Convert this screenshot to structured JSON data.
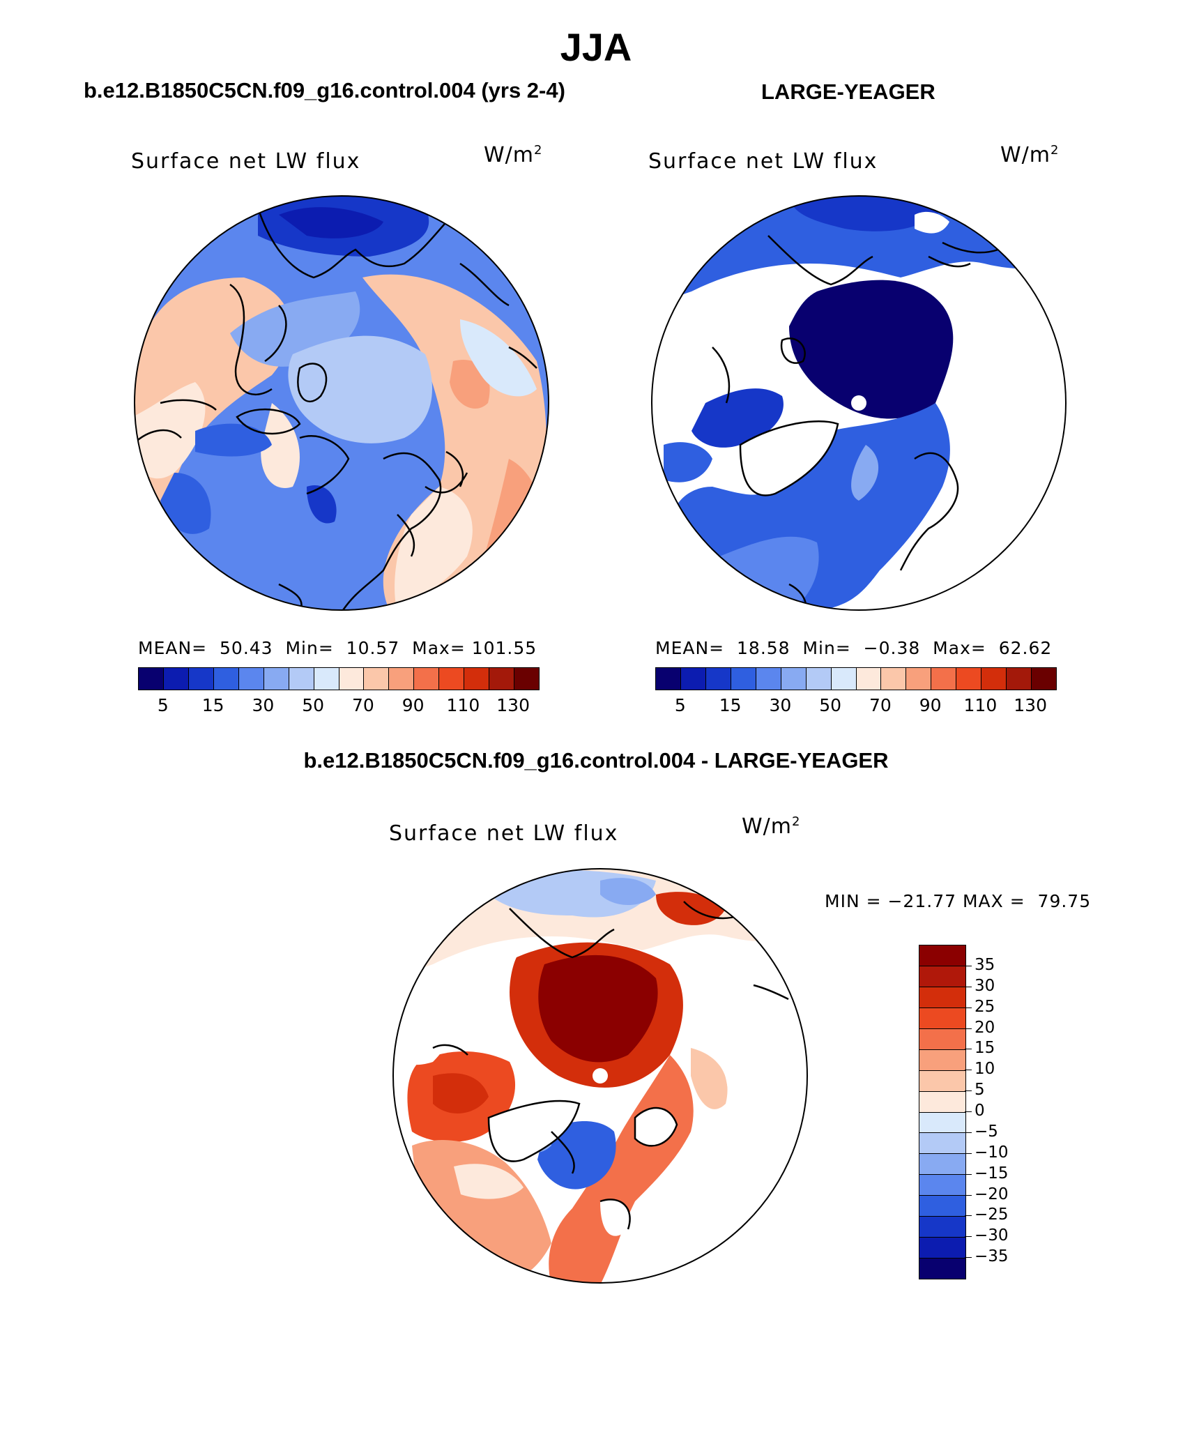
{
  "title": "JJA",
  "panels": {
    "left": {
      "case_title": "b.e12.B1850C5CN.f09_g16.control.004 (yrs 2-4)",
      "variable": "Surface net LW flux",
      "units_base": "W/m",
      "units_exp": "2",
      "stats": "MEAN=  50.43  Min=  10.57  Max= 101.55"
    },
    "right": {
      "case_title": "LARGE-YEAGER",
      "variable": "Surface net LW flux",
      "units_base": "W/m",
      "units_exp": "2",
      "stats": "MEAN=  18.58  Min=  −0.38  Max=  62.62"
    },
    "diff": {
      "case_title": "b.e12.B1850C5CN.f09_g16.control.004 - LARGE-YEAGER",
      "variable": "Surface net LW flux",
      "units_base": "W/m",
      "units_exp": "2",
      "minmax": "MIN = −21.77 MAX =  79.75"
    }
  },
  "colorbar_top": {
    "tick_labels": [
      "5",
      "15",
      "30",
      "50",
      "70",
      "90",
      "110",
      "130"
    ],
    "colors": [
      "#08006f",
      "#0c1cb0",
      "#1637c8",
      "#2f5fe0",
      "#5b86ee",
      "#88aaf2",
      "#b3caf6",
      "#d9e9fb",
      "#fde9dc",
      "#fbc7aa",
      "#f8a07c",
      "#f3704a",
      "#ec4a21",
      "#d32e0b",
      "#a3190a",
      "#6a0000"
    ]
  },
  "colorbar_diff": {
    "tick_labels": [
      "35",
      "30",
      "25",
      "20",
      "15",
      "10",
      "5",
      "0",
      "−5",
      "−10",
      "−15",
      "−20",
      "−25",
      "−30",
      "−35"
    ],
    "colors": [
      "#8b0000",
      "#b0180a",
      "#d32e0b",
      "#ec4a21",
      "#f3704a",
      "#f8a07c",
      "#fbc7aa",
      "#fde9dc",
      "#d9e9fb",
      "#b3caf6",
      "#88aaf2",
      "#5b86ee",
      "#2f5fe0",
      "#1637c8",
      "#0c1cb0",
      "#08006f"
    ]
  }
}
